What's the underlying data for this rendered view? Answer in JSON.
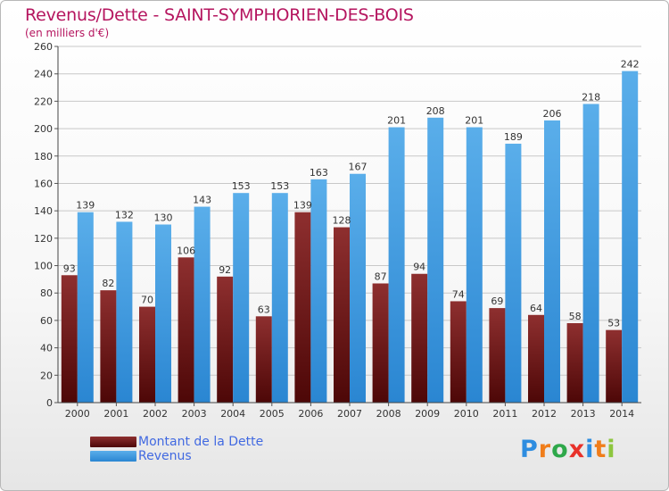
{
  "header": {
    "title": "Revenus/Dette - SAINT-SYMPHORIEN-DES-BOIS",
    "subtitle": "(en milliers d'€)"
  },
  "legend": {
    "items": [
      {
        "label": "Montant de la Dette"
      },
      {
        "label": "Revenus"
      }
    ]
  },
  "logo": {
    "text": "Proxiti",
    "letters": [
      "P",
      "r",
      "o",
      "x",
      "i",
      "t",
      "i"
    ],
    "letter_colors": [
      "#2e8de0",
      "#f07d1a",
      "#2ea84a",
      "#e8312a",
      "#2e8de0",
      "#f07d1a",
      "#8dc63f"
    ]
  },
  "colors": {
    "dette": "#6b0f0f",
    "revenus": "#3a9ae0",
    "title": "#b5155f",
    "legend_text": "#4169e1"
  },
  "chart_data": {
    "type": "bar",
    "title": "Revenus/Dette - SAINT-SYMPHORIEN-DES-BOIS",
    "subtitle": "(en milliers d'€)",
    "xlabel": "",
    "ylabel": "",
    "categories": [
      "2000",
      "2001",
      "2002",
      "2003",
      "2004",
      "2005",
      "2006",
      "2007",
      "2008",
      "2009",
      "2010",
      "2011",
      "2012",
      "2013",
      "2014"
    ],
    "series": [
      {
        "name": "Montant de la Dette",
        "values": [
          93,
          82,
          70,
          106,
          92,
          63,
          139,
          128,
          87,
          94,
          74,
          69,
          64,
          58,
          53
        ]
      },
      {
        "name": "Revenus",
        "values": [
          139,
          132,
          130,
          143,
          153,
          153,
          163,
          167,
          201,
          208,
          201,
          189,
          206,
          218,
          242
        ]
      }
    ],
    "ylim": [
      0,
      260
    ],
    "yticks": [
      0,
      20,
      40,
      60,
      80,
      100,
      120,
      140,
      160,
      180,
      200,
      220,
      240,
      260
    ],
    "grid": true,
    "legend_position": "bottom-left"
  }
}
